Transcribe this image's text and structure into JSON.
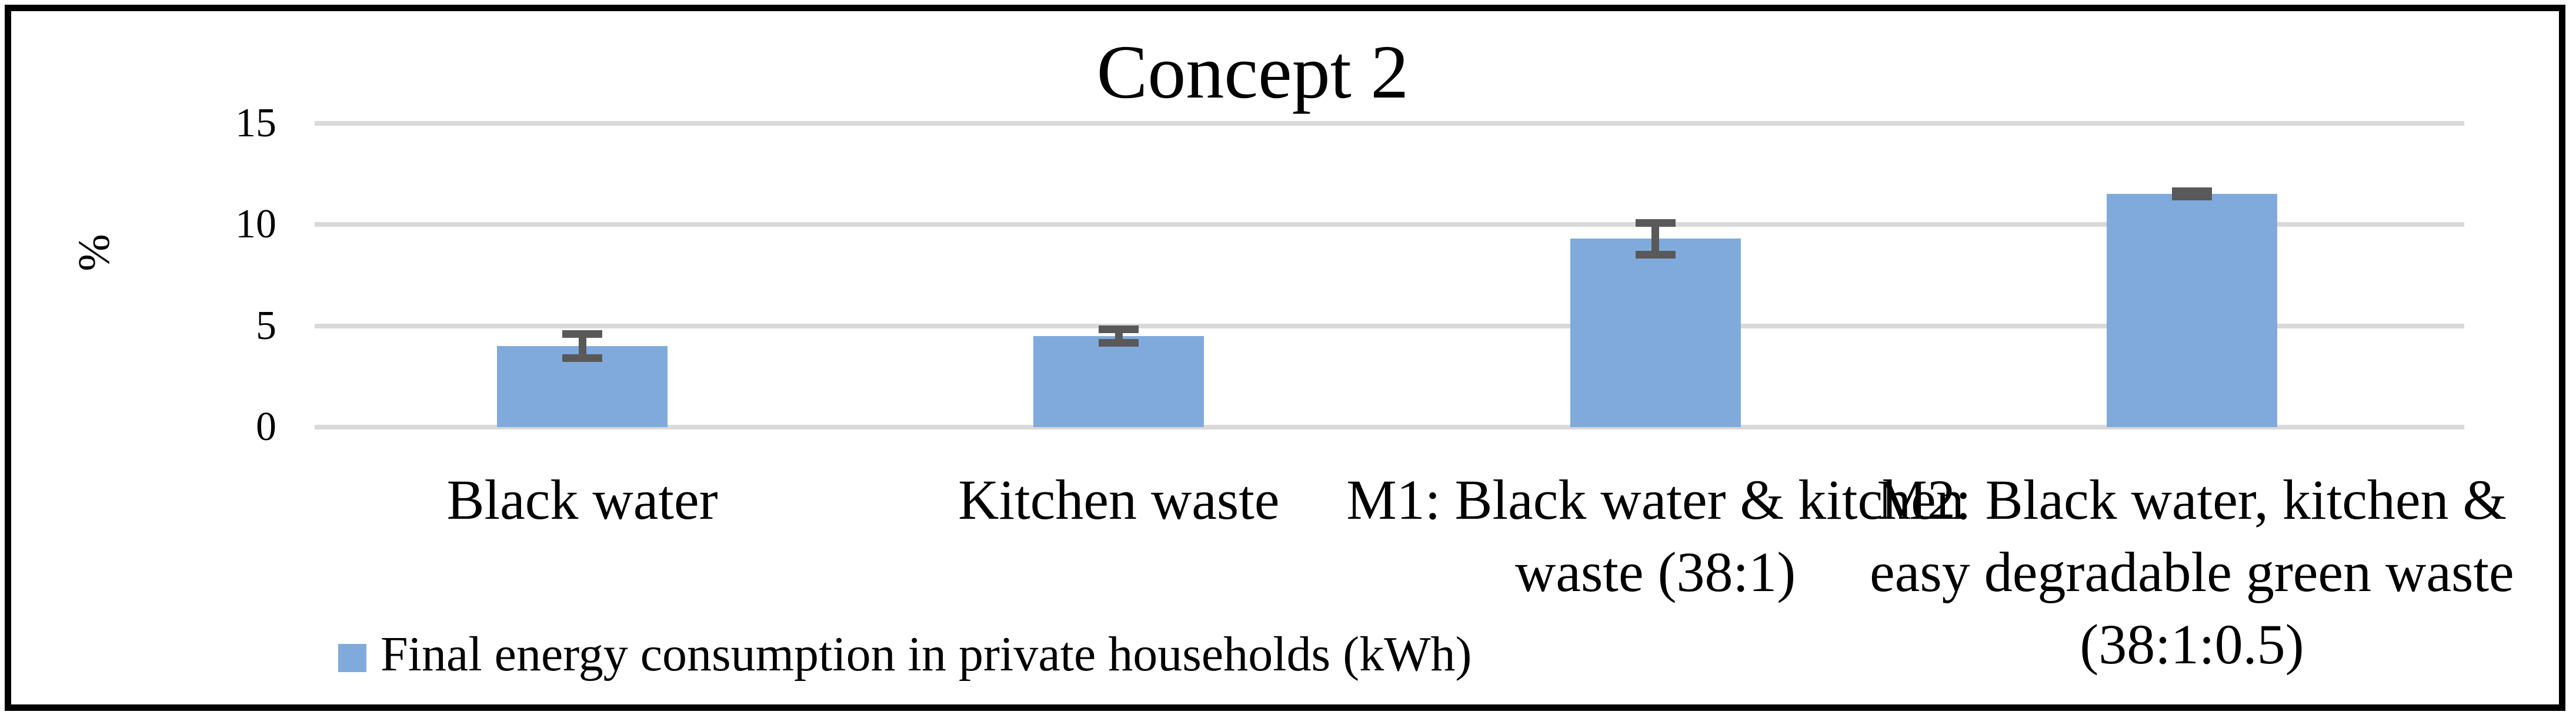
{
  "chart_data": {
    "type": "bar",
    "title": "Concept 2",
    "ylabel": "%",
    "categories": [
      "Black water",
      "Kitchen waste",
      "M1: Black water & kitchen waste (38:1)",
      "M2: Black water, kitchen & easy degradable green waste (38:1:0.5)"
    ],
    "series": [
      {
        "name": "Final energy consumption in private households (kWh)",
        "values": [
          4.0,
          4.5,
          9.3,
          11.5
        ],
        "errors": [
          0.6,
          0.35,
          0.8,
          0.15
        ]
      }
    ],
    "yticks": [
      0,
      5,
      10,
      15
    ],
    "ylim": [
      0,
      15
    ],
    "grid": true,
    "legend": "Final energy consumption in private households (kWh)",
    "legend_position": "bottom-left",
    "colors": {
      "bar": "#80AADC",
      "error_bar": "#595959",
      "gridline": "#D9D9D9",
      "border": "#000000",
      "text": "#000000"
    }
  }
}
